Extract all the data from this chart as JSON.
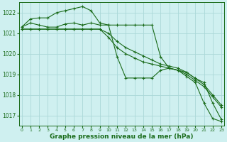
{
  "background_color": "#cff0f0",
  "grid_color": "#aad8d8",
  "line_color": "#1a6b1a",
  "marker_color": "#1a6b1a",
  "xlabel": "Graphe pression niveau de la mer (hPa)",
  "xlabel_fontsize": 6.5,
  "ylim": [
    1016.5,
    1022.5
  ],
  "xlim": [
    -0.3,
    23.3
  ],
  "yticks": [
    1017,
    1018,
    1019,
    1020,
    1021,
    1022
  ],
  "xticks": [
    0,
    1,
    2,
    3,
    4,
    5,
    6,
    7,
    8,
    9,
    10,
    11,
    12,
    13,
    14,
    15,
    16,
    17,
    18,
    19,
    20,
    21,
    22,
    23
  ],
  "series": [
    [
      1021.3,
      1021.7,
      1021.75,
      1021.75,
      1022.0,
      1022.1,
      1022.2,
      1022.3,
      1022.1,
      1021.5,
      1021.4,
      1019.85,
      1018.82,
      1018.82,
      1018.82,
      1018.82,
      1019.2,
      1019.3,
      1019.2,
      1018.9,
      1018.6,
      1017.6,
      1016.85,
      1016.7
    ],
    [
      1021.3,
      1021.5,
      1021.4,
      1021.3,
      1021.3,
      1021.45,
      1021.5,
      1021.4,
      1021.5,
      1021.4,
      1021.4,
      1021.4,
      1021.4,
      1021.4,
      1021.4,
      1021.4,
      1019.85,
      1019.3,
      1019.2,
      1019.1,
      1018.8,
      1018.6,
      1017.6,
      1016.8
    ],
    [
      1021.2,
      1021.2,
      1021.2,
      1021.2,
      1021.2,
      1021.2,
      1021.2,
      1021.2,
      1021.2,
      1021.2,
      1021.0,
      1020.6,
      1020.3,
      1020.1,
      1019.9,
      1019.7,
      1019.5,
      1019.4,
      1019.3,
      1019.1,
      1018.8,
      1018.5,
      1018.0,
      1017.5
    ],
    [
      1021.2,
      1021.2,
      1021.2,
      1021.2,
      1021.2,
      1021.2,
      1021.2,
      1021.2,
      1021.2,
      1021.2,
      1020.8,
      1020.3,
      1020.0,
      1019.8,
      1019.6,
      1019.5,
      1019.4,
      1019.3,
      1019.2,
      1019.0,
      1018.7,
      1018.4,
      1017.9,
      1017.4
    ]
  ]
}
